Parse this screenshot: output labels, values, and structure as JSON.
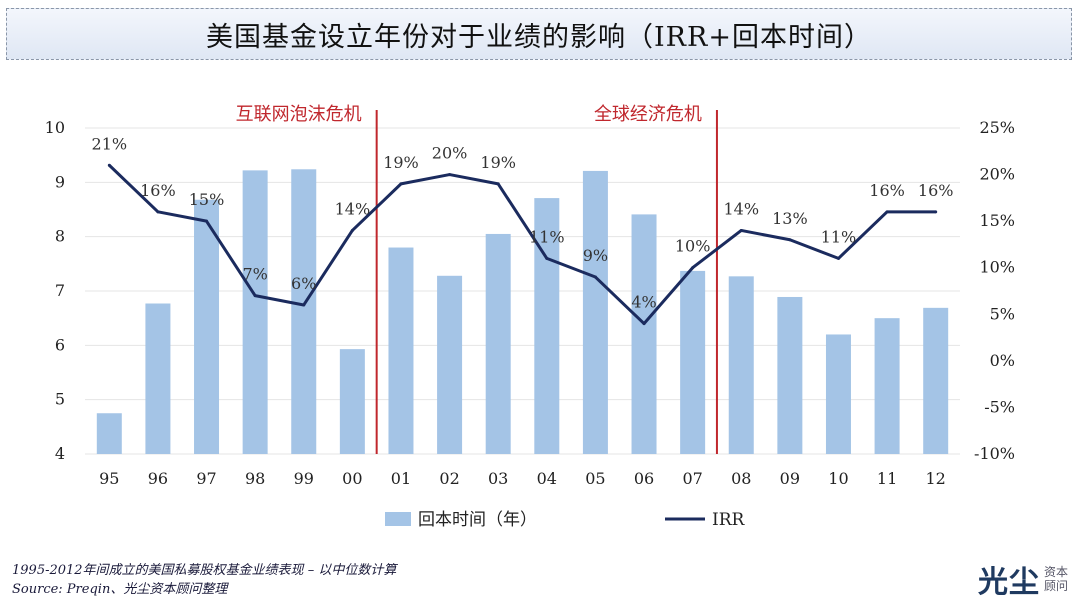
{
  "title": "美国基金设立年份对于业绩的影响（IRR+回本时间）",
  "chart_data": {
    "type": "bar+line",
    "categories": [
      "95",
      "96",
      "97",
      "98",
      "99",
      "00",
      "01",
      "02",
      "03",
      "04",
      "05",
      "06",
      "07",
      "08",
      "09",
      "10",
      "11",
      "12"
    ],
    "series": [
      {
        "name": "回本时间（年）",
        "type": "bar",
        "axis": "left",
        "values": [
          4.75,
          6.77,
          8.68,
          9.22,
          9.24,
          5.93,
          7.8,
          7.28,
          8.05,
          8.71,
          9.21,
          8.41,
          7.37,
          7.27,
          6.89,
          6.2,
          6.5,
          6.69
        ]
      },
      {
        "name": "IRR",
        "type": "line",
        "axis": "right",
        "values": [
          21,
          16,
          15,
          7,
          6,
          14,
          19,
          20,
          19,
          11,
          9,
          4,
          10,
          14,
          13,
          11,
          16,
          16
        ],
        "labels": [
          "21%",
          "16%",
          "15%",
          "7%",
          "6%",
          "14%",
          "19%",
          "20%",
          "19%",
          "11%",
          "9%",
          "4%",
          "10%",
          "14%",
          "13%",
          "11%",
          "16%",
          "16%"
        ]
      }
    ],
    "y_left": {
      "min": 4,
      "max": 10,
      "ticks": [
        "10",
        "9",
        "8",
        "7",
        "6",
        "5",
        "4"
      ]
    },
    "y_right": {
      "min": -10,
      "max": 25,
      "ticks": [
        "25%",
        "20%",
        "15%",
        "10%",
        "5%",
        "0%",
        "-5%",
        "-10%"
      ]
    },
    "grid": true,
    "annotations": [
      {
        "text": "互联网泡沫危机",
        "between": [
          "00",
          "01"
        ]
      },
      {
        "text": "全球经济危机",
        "between": [
          "07",
          "08"
        ]
      }
    ],
    "legend_position": "bottom",
    "colors": {
      "bar": "#a4c4e6",
      "line": "#1b2b5e",
      "divider": "#c0272d",
      "annotation": "#c0272d",
      "grid": "#e4e4e4"
    }
  },
  "footer": {
    "line1": "1995-2012年间成立的美国私募股权基金业绩表现 – 以中位数计算",
    "line2": "Source: Preqin、光尘资本顾问整理"
  },
  "logo": {
    "main": "光尘",
    "sub1": "资本",
    "sub2": "顾问"
  }
}
